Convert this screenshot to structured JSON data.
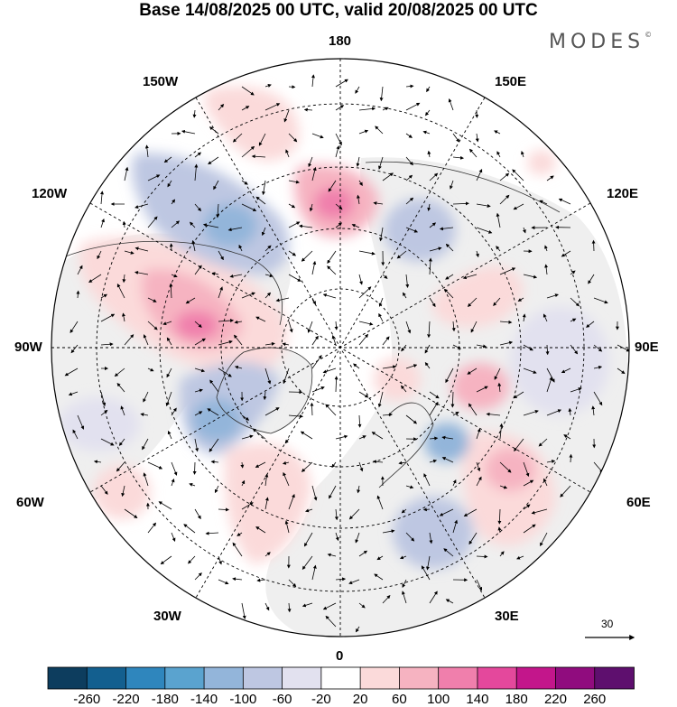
{
  "title": "Base 14/08/2025 00 UTC, valid 20/08/2025 00 UTC",
  "brand": "MODES",
  "brand_mark": "©",
  "longitude_labels": {
    "lon_180": "180",
    "lon_150w": "150W",
    "lon_150e": "150E",
    "lon_120w": "120W",
    "lon_120e": "120E",
    "lon_90w": "90W",
    "lon_90e": "90E",
    "lon_60w": "60W",
    "lon_60e": "60E",
    "lon_30w": "30W",
    "lon_30e": "30E",
    "lon_0": "0"
  },
  "reference_vector": "30",
  "colorbar": {
    "ticks": [
      "-260",
      "-220",
      "-180",
      "-140",
      "-100",
      "-60",
      "-20",
      "20",
      "60",
      "100",
      "140",
      "180",
      "220",
      "260"
    ],
    "colors": [
      "#0d3d5e",
      "#135f8f",
      "#2f86bd",
      "#5aa3cf",
      "#93b5da",
      "#bec7e2",
      "#e2e1ef",
      "#ffffff",
      "#fbdada",
      "#f6b3c1",
      "#f07fac",
      "#e4489c",
      "#c3168b",
      "#900c7e",
      "#5e0f6e"
    ]
  },
  "colors": {
    "land": "#efefef",
    "ocean": "#ffffff",
    "positive_light": "#fbdada",
    "positive_mid": "#f6b3c1",
    "positive_strong": "#f07fac",
    "negative_light": "#e2e1ef",
    "negative_mid": "#bec7e2",
    "negative_strong": "#93b5da"
  }
}
